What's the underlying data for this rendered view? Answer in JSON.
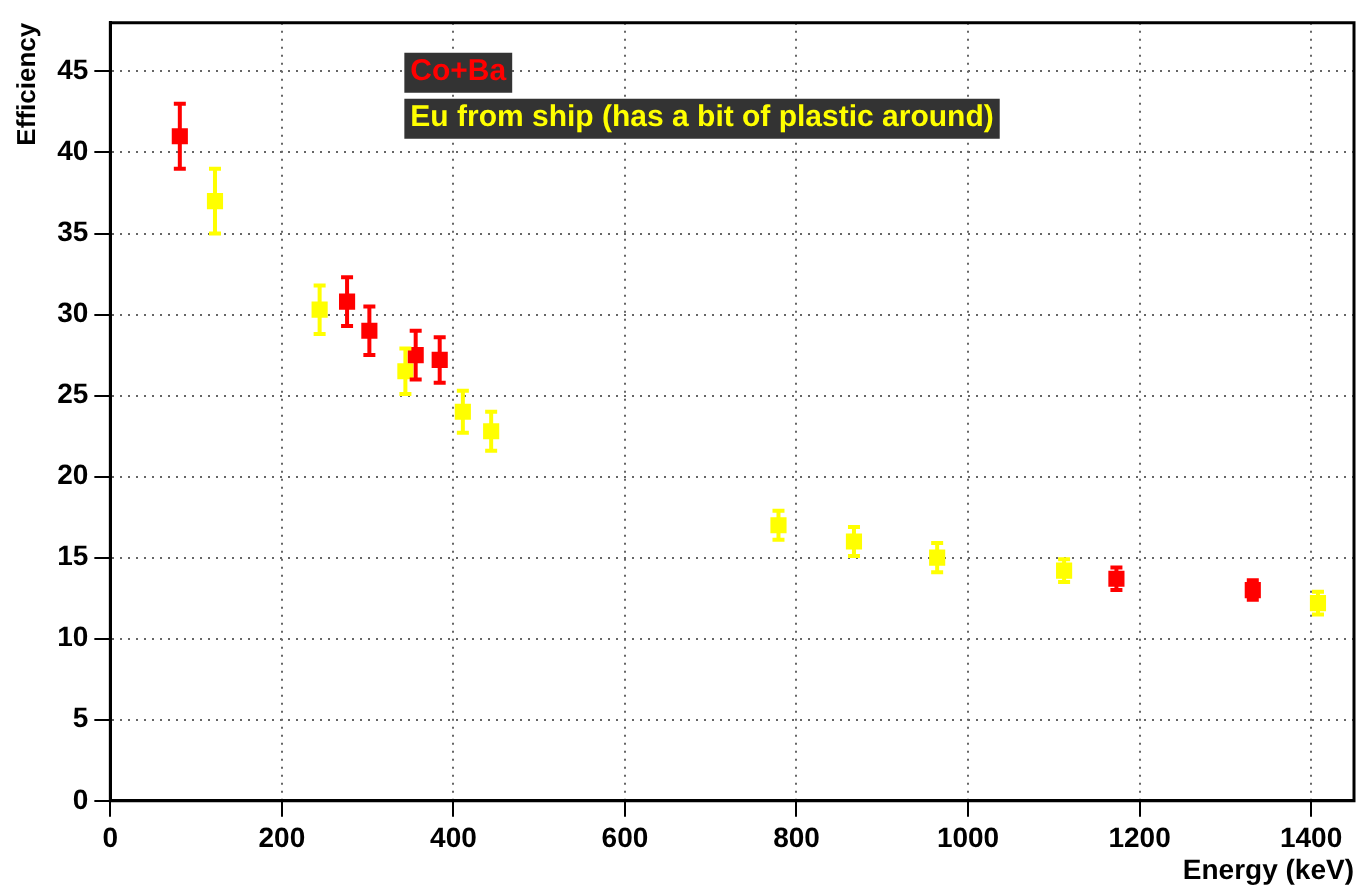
{
  "chart_data": {
    "type": "scatter",
    "xlabel": "Energy (keV)",
    "ylabel": "Efficiency",
    "xlim": [
      0,
      1450
    ],
    "xticks": [
      0,
      200,
      400,
      600,
      800,
      1000,
      1200,
      1400
    ],
    "ylim": [
      0,
      48
    ],
    "yticks": [
      0,
      5,
      10,
      15,
      20,
      25,
      30,
      35,
      40,
      45
    ],
    "grid": true,
    "marker": "square",
    "series": [
      {
        "name": "Co+Ba",
        "color": "#ff0000",
        "x": [
          81,
          276,
          302,
          356,
          384,
          1173,
          1332
        ],
        "values": [
          41,
          30.8,
          29,
          27.5,
          27.2,
          13.7,
          13.0
        ],
        "errors": [
          2,
          1.5,
          1.5,
          1.5,
          1.4,
          0.7,
          0.6
        ]
      },
      {
        "name": "Eu from ship (has a bit of plastic around)",
        "color": "#ffff00",
        "x": [
          122,
          244,
          344,
          411,
          444,
          779,
          867,
          964,
          1112,
          1408
        ],
        "values": [
          37,
          30.3,
          26.5,
          24,
          22.8,
          17,
          16,
          15,
          14.2,
          12.2
        ],
        "errors": [
          2,
          1.5,
          1.4,
          1.3,
          1.2,
          0.9,
          0.9,
          0.9,
          0.7,
          0.7
        ]
      }
    ]
  }
}
